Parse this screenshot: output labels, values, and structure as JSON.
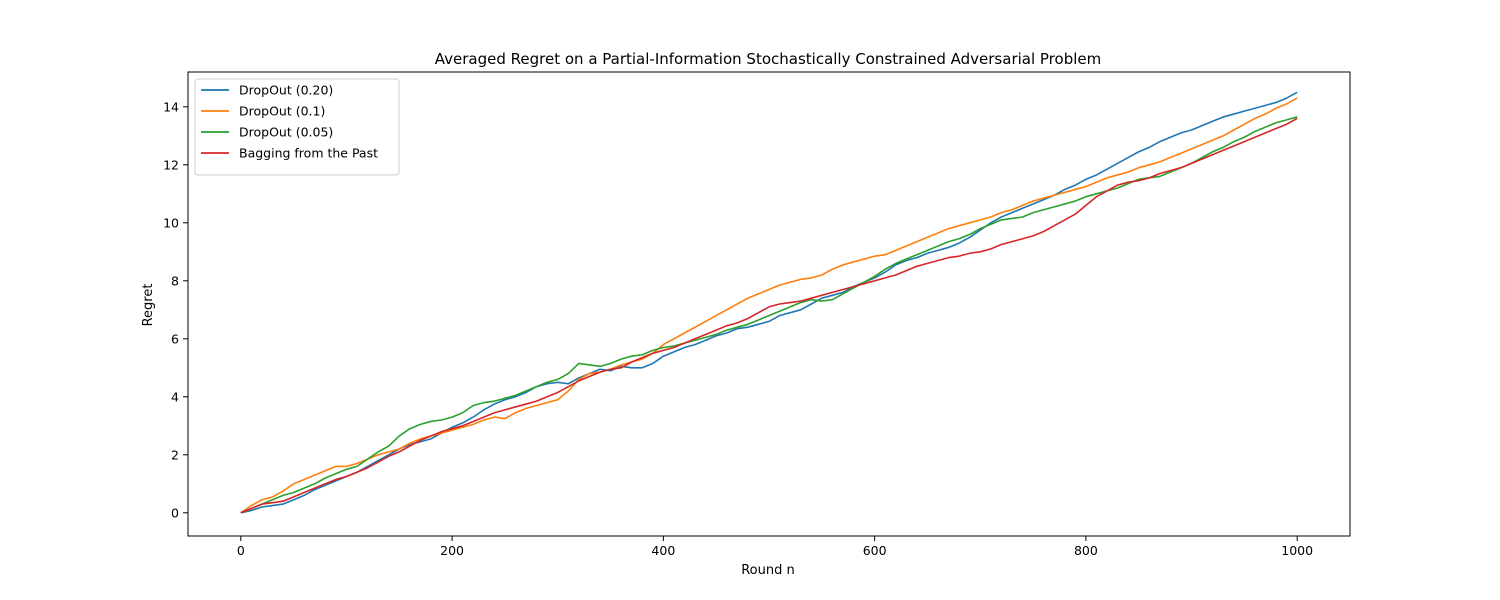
{
  "chart_data": {
    "type": "line",
    "title": "Averaged Regret on a Partial-Information Stochastically Constrained Adversarial Problem",
    "xlabel": "Round n",
    "ylabel": "Regret",
    "xlim": [
      -50,
      1050
    ],
    "ylim": [
      -0.8,
      15.2
    ],
    "xticks": [
      0,
      200,
      400,
      600,
      800,
      1000
    ],
    "yticks": [
      0,
      2,
      4,
      6,
      8,
      10,
      12,
      14
    ],
    "xtick_labels": [
      "0",
      "200",
      "400",
      "600",
      "800",
      "1000"
    ],
    "ytick_labels": [
      "0",
      "2",
      "4",
      "6",
      "8",
      "10",
      "12",
      "14"
    ],
    "grid": false,
    "legend_position": "top-left",
    "x": [
      0,
      10,
      20,
      30,
      40,
      50,
      60,
      70,
      80,
      90,
      100,
      110,
      120,
      130,
      140,
      150,
      160,
      170,
      180,
      190,
      200,
      210,
      220,
      230,
      240,
      250,
      260,
      270,
      280,
      290,
      300,
      310,
      320,
      330,
      340,
      350,
      360,
      370,
      380,
      390,
      400,
      410,
      420,
      430,
      440,
      450,
      460,
      470,
      480,
      490,
      500,
      510,
      520,
      530,
      540,
      550,
      560,
      570,
      580,
      590,
      600,
      610,
      620,
      630,
      640,
      650,
      660,
      670,
      680,
      690,
      700,
      710,
      720,
      730,
      740,
      750,
      760,
      770,
      780,
      790,
      800,
      810,
      820,
      830,
      840,
      850,
      860,
      870,
      880,
      890,
      900,
      910,
      920,
      930,
      940,
      950,
      960,
      970,
      980,
      990,
      1000
    ],
    "series": [
      {
        "name": "DropOut (0.20)",
        "color": "#1f77b4",
        "values": [
          0.0,
          0.08,
          0.2,
          0.25,
          0.3,
          0.45,
          0.6,
          0.8,
          0.95,
          1.1,
          1.25,
          1.4,
          1.6,
          1.8,
          2.0,
          2.2,
          2.35,
          2.45,
          2.55,
          2.75,
          2.95,
          3.1,
          3.3,
          3.55,
          3.75,
          3.9,
          4.0,
          4.15,
          4.35,
          4.45,
          4.5,
          4.45,
          4.65,
          4.8,
          4.95,
          4.9,
          5.05,
          5.0,
          5.0,
          5.15,
          5.4,
          5.55,
          5.7,
          5.8,
          5.95,
          6.1,
          6.2,
          6.35,
          6.4,
          6.5,
          6.6,
          6.8,
          6.9,
          7.0,
          7.2,
          7.4,
          7.5,
          7.6,
          7.8,
          7.95,
          8.1,
          8.3,
          8.55,
          8.7,
          8.8,
          8.95,
          9.05,
          9.15,
          9.3,
          9.5,
          9.75,
          10.0,
          10.2,
          10.35,
          10.5,
          10.65,
          10.8,
          10.95,
          11.15,
          11.3,
          11.5,
          11.65,
          11.85,
          12.05,
          12.25,
          12.45,
          12.6,
          12.8,
          12.95,
          13.1,
          13.2,
          13.35,
          13.5,
          13.65,
          13.75,
          13.85,
          13.95,
          14.05,
          14.15,
          14.3,
          14.5
        ]
      },
      {
        "name": "DropOut (0.1)",
        "color": "#ff7f0e",
        "values": [
          0.0,
          0.25,
          0.45,
          0.55,
          0.75,
          1.0,
          1.15,
          1.3,
          1.45,
          1.6,
          1.6,
          1.7,
          1.85,
          2.0,
          2.1,
          2.2,
          2.4,
          2.55,
          2.65,
          2.75,
          2.85,
          2.95,
          3.05,
          3.2,
          3.3,
          3.25,
          3.45,
          3.6,
          3.7,
          3.8,
          3.9,
          4.2,
          4.6,
          4.8,
          4.85,
          4.95,
          5.1,
          5.2,
          5.3,
          5.5,
          5.8,
          6.0,
          6.2,
          6.4,
          6.6,
          6.8,
          7.0,
          7.2,
          7.4,
          7.55,
          7.7,
          7.85,
          7.95,
          8.05,
          8.1,
          8.2,
          8.4,
          8.55,
          8.65,
          8.75,
          8.85,
          8.9,
          9.05,
          9.2,
          9.35,
          9.5,
          9.65,
          9.8,
          9.9,
          10.0,
          10.1,
          10.2,
          10.35,
          10.45,
          10.6,
          10.75,
          10.85,
          10.95,
          11.05,
          11.15,
          11.25,
          11.4,
          11.55,
          11.65,
          11.75,
          11.9,
          12.0,
          12.1,
          12.25,
          12.4,
          12.55,
          12.7,
          12.85,
          13.0,
          13.2,
          13.4,
          13.6,
          13.75,
          13.95,
          14.1,
          14.3
        ]
      },
      {
        "name": "DropOut (0.05)",
        "color": "#2ca02c",
        "values": [
          0.0,
          0.15,
          0.3,
          0.45,
          0.6,
          0.7,
          0.85,
          1.0,
          1.2,
          1.35,
          1.5,
          1.6,
          1.85,
          2.1,
          2.3,
          2.65,
          2.9,
          3.05,
          3.15,
          3.2,
          3.3,
          3.45,
          3.7,
          3.8,
          3.85,
          3.95,
          4.05,
          4.2,
          4.35,
          4.5,
          4.6,
          4.8,
          5.15,
          5.1,
          5.05,
          5.15,
          5.3,
          5.4,
          5.45,
          5.6,
          5.7,
          5.75,
          5.85,
          5.95,
          6.05,
          6.15,
          6.3,
          6.4,
          6.5,
          6.65,
          6.8,
          6.95,
          7.1,
          7.25,
          7.35,
          7.3,
          7.35,
          7.55,
          7.75,
          7.95,
          8.15,
          8.4,
          8.6,
          8.75,
          8.9,
          9.05,
          9.2,
          9.35,
          9.45,
          9.6,
          9.8,
          9.95,
          10.1,
          10.15,
          10.2,
          10.35,
          10.45,
          10.55,
          10.65,
          10.75,
          10.9,
          11.0,
          11.1,
          11.2,
          11.35,
          11.5,
          11.55,
          11.6,
          11.75,
          11.9,
          12.05,
          12.25,
          12.45,
          12.6,
          12.8,
          12.95,
          13.15,
          13.3,
          13.45,
          13.55,
          13.65
        ]
      },
      {
        "name": "Bagging from the Past",
        "color": "#d62728",
        "values": [
          0.0,
          0.15,
          0.3,
          0.35,
          0.4,
          0.55,
          0.7,
          0.85,
          1.0,
          1.15,
          1.25,
          1.4,
          1.55,
          1.75,
          1.95,
          2.1,
          2.3,
          2.5,
          2.65,
          2.8,
          2.9,
          3.0,
          3.15,
          3.3,
          3.45,
          3.55,
          3.65,
          3.75,
          3.85,
          4.0,
          4.15,
          4.35,
          4.55,
          4.7,
          4.85,
          4.95,
          5.0,
          5.2,
          5.35,
          5.5,
          5.6,
          5.7,
          5.85,
          6.0,
          6.15,
          6.3,
          6.45,
          6.55,
          6.7,
          6.9,
          7.1,
          7.2,
          7.25,
          7.3,
          7.4,
          7.5,
          7.6,
          7.7,
          7.8,
          7.9,
          8.0,
          8.1,
          8.2,
          8.35,
          8.5,
          8.6,
          8.7,
          8.8,
          8.85,
          8.95,
          9.0,
          9.1,
          9.25,
          9.35,
          9.45,
          9.55,
          9.7,
          9.9,
          10.1,
          10.3,
          10.6,
          10.9,
          11.1,
          11.3,
          11.4,
          11.45,
          11.55,
          11.7,
          11.8,
          11.9,
          12.05,
          12.2,
          12.35,
          12.5,
          12.65,
          12.8,
          12.95,
          13.1,
          13.25,
          13.4,
          13.6
        ]
      }
    ]
  }
}
